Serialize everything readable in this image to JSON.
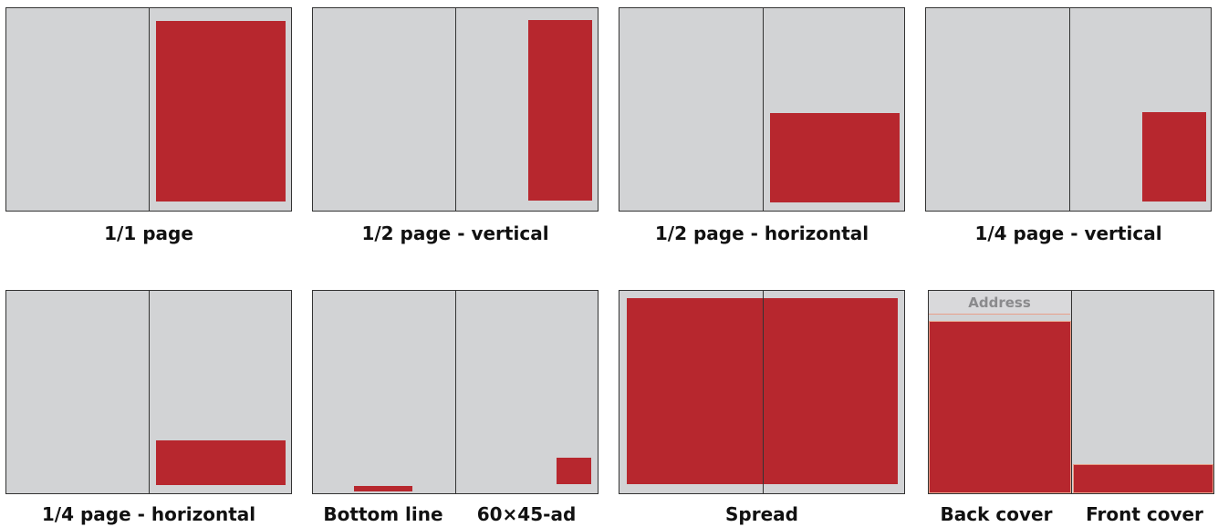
{
  "layouts": [
    {
      "label": "1/1 page"
    },
    {
      "label": "1/2 page - vertical"
    },
    {
      "label": "1/2 page - horizontal"
    },
    {
      "label": "1/4 page - vertical"
    },
    {
      "label": "1/4 page - horizontal"
    },
    {
      "label_left": "Bottom line",
      "label_right": "60×45-ad"
    },
    {
      "label": "Spread"
    },
    {
      "address": "Address",
      "label_left": "Back cover",
      "label_right": "Front cover"
    }
  ],
  "colors": {
    "page": "#d2d3d5",
    "ad": "#b7272e",
    "border": "#333333"
  }
}
